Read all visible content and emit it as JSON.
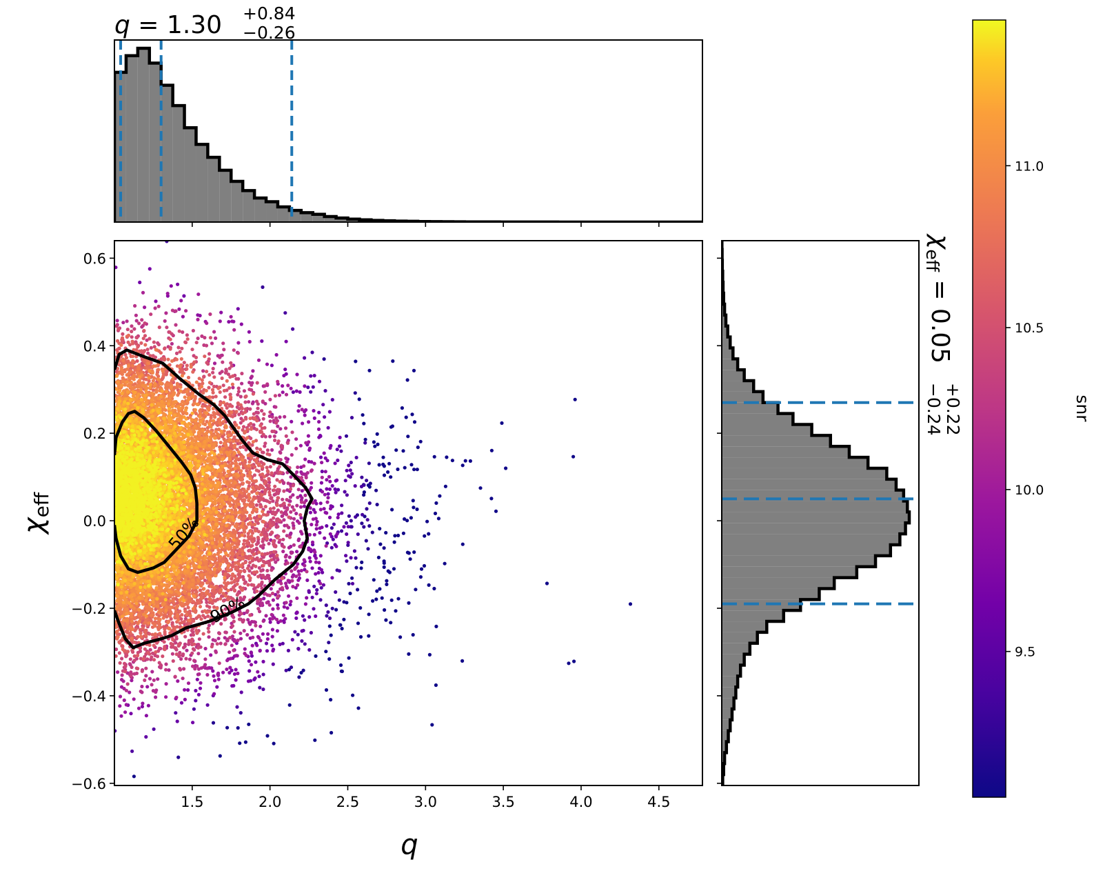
{
  "chart_data": {
    "type": "scatter",
    "figure": "joint posterior corner plot",
    "colors": {
      "histogram_fill": "#808080",
      "histogram_edge": "#000000",
      "quantile_line": "#1f77b4",
      "contour": "#000000",
      "colormap": "plasma"
    },
    "main": {
      "type": "scatter",
      "x_label": "q",
      "y_label": "χ",
      "y_label_sub": "eff",
      "xlim": [
        1.0,
        4.78
      ],
      "ylim": [
        -0.605,
        0.64
      ],
      "x_ticks": [
        "1.5",
        "2.0",
        "2.5",
        "3.0",
        "3.5",
        "4.0",
        "4.5"
      ],
      "y_ticks": [
        "0.6",
        "0.4",
        "0.2",
        "0.0",
        "−0.2",
        "−0.4",
        "−0.6"
      ],
      "color_by": "snr",
      "approx_points": 14000,
      "contours": [
        {
          "label": "50%",
          "points": [
            [
              1.0,
              0.15
            ],
            [
              1.01,
              0.19
            ],
            [
              1.05,
              0.225
            ],
            [
              1.09,
              0.245
            ],
            [
              1.13,
              0.25
            ],
            [
              1.19,
              0.235
            ],
            [
              1.27,
              0.205
            ],
            [
              1.35,
              0.17
            ],
            [
              1.43,
              0.135
            ],
            [
              1.49,
              0.105
            ],
            [
              1.52,
              0.075
            ],
            [
              1.53,
              0.04
            ],
            [
              1.53,
              0.0
            ],
            [
              1.48,
              -0.035
            ],
            [
              1.4,
              -0.065
            ],
            [
              1.32,
              -0.095
            ],
            [
              1.25,
              -0.108
            ],
            [
              1.15,
              -0.118
            ],
            [
              1.09,
              -0.11
            ],
            [
              1.04,
              -0.08
            ],
            [
              1.01,
              -0.04
            ],
            [
              1.0,
              -0.01
            ]
          ]
        },
        {
          "label": "90%",
          "points": [
            [
              1.0,
              0.345
            ],
            [
              1.03,
              0.38
            ],
            [
              1.08,
              0.39
            ],
            [
              1.19,
              0.375
            ],
            [
              1.31,
              0.36
            ],
            [
              1.42,
              0.325
            ],
            [
              1.54,
              0.29
            ],
            [
              1.64,
              0.265
            ],
            [
              1.71,
              0.24
            ],
            [
              1.77,
              0.21
            ],
            [
              1.82,
              0.185
            ],
            [
              1.89,
              0.155
            ],
            [
              1.98,
              0.14
            ],
            [
              2.08,
              0.13
            ],
            [
              2.15,
              0.105
            ],
            [
              2.19,
              0.09
            ],
            [
              2.23,
              0.075
            ],
            [
              2.27,
              0.05
            ],
            [
              2.24,
              0.03
            ],
            [
              2.22,
              0.0
            ],
            [
              2.24,
              -0.04
            ],
            [
              2.21,
              -0.07
            ],
            [
              2.15,
              -0.1
            ],
            [
              2.03,
              -0.135
            ],
            [
              1.93,
              -0.17
            ],
            [
              1.86,
              -0.19
            ],
            [
              1.75,
              -0.21
            ],
            [
              1.61,
              -0.23
            ],
            [
              1.46,
              -0.245
            ],
            [
              1.37,
              -0.262
            ],
            [
              1.3,
              -0.27
            ],
            [
              1.19,
              -0.28
            ],
            [
              1.12,
              -0.29
            ],
            [
              1.07,
              -0.27
            ],
            [
              1.03,
              -0.235
            ],
            [
              1.0,
              -0.205
            ]
          ]
        }
      ],
      "contour_labels": [
        {
          "text": "50%",
          "x": 1.45,
          "y": -0.03,
          "angle": -50
        },
        {
          "text": "90%",
          "x": 1.73,
          "y": -0.205,
          "angle": -28
        }
      ]
    },
    "top_histogram": {
      "type": "histogram",
      "variable": "q",
      "title_value": "1.30",
      "title_plus": "+0.84",
      "title_minus": "−0.26",
      "quantiles": [
        1.04,
        1.3,
        2.14
      ],
      "bin_edges": [
        1.0,
        1.075,
        1.15,
        1.225,
        1.3,
        1.375,
        1.45,
        1.525,
        1.6,
        1.675,
        1.75,
        1.825,
        1.9,
        1.975,
        2.05,
        2.125,
        2.2,
        2.275,
        2.35,
        2.425,
        2.5,
        2.575,
        2.65,
        2.725,
        2.8,
        2.875,
        2.95,
        3.025,
        3.1,
        3.175,
        3.25,
        3.325,
        3.4,
        3.475,
        3.55,
        3.625,
        3.7,
        3.775,
        3.85,
        3.925,
        4.0,
        4.075,
        4.15,
        4.225,
        4.3,
        4.375,
        4.45,
        4.525,
        4.6,
        4.675,
        4.75,
        4.78
      ],
      "densities": [
        0.81,
        0.9,
        0.94,
        0.86,
        0.74,
        0.63,
        0.51,
        0.42,
        0.35,
        0.28,
        0.22,
        0.17,
        0.13,
        0.11,
        0.082,
        0.063,
        0.051,
        0.042,
        0.03,
        0.022,
        0.016,
        0.012,
        0.009,
        0.007,
        0.005,
        0.004,
        0.003,
        0.0025,
        0.002,
        0.0015,
        0.001,
        0.001,
        0.0008,
        0.0006,
        0.0005,
        0.0004,
        0.0003,
        0.0003,
        0.0002,
        0.0002,
        0.0001,
        0.0001,
        0.0001,
        0.0001,
        0.0001,
        0.0001,
        0.0001,
        0.0001,
        0.0001,
        0.0001,
        0.0001
      ],
      "x_ticks": [
        1.5,
        2.0,
        2.5,
        3.0,
        3.5,
        4.0,
        4.5
      ]
    },
    "right_histogram": {
      "type": "histogram",
      "variable": "χ_eff",
      "orientation": "horizontal",
      "title_prefix": "χ",
      "title_sub": "eff",
      "title_value": "0.05",
      "title_plus": "+0.22",
      "title_minus": "−0.24",
      "quantiles": [
        -0.19,
        0.05,
        0.27
      ],
      "bin_edges": [
        -0.605,
        -0.58,
        -0.555,
        -0.53,
        -0.505,
        -0.48,
        -0.455,
        -0.43,
        -0.405,
        -0.38,
        -0.355,
        -0.33,
        -0.305,
        -0.28,
        -0.255,
        -0.23,
        -0.205,
        -0.18,
        -0.155,
        -0.13,
        -0.105,
        -0.08,
        -0.055,
        -0.03,
        -0.005,
        0.02,
        0.045,
        0.07,
        0.095,
        0.12,
        0.145,
        0.17,
        0.195,
        0.22,
        0.245,
        0.27,
        0.295,
        0.32,
        0.345,
        0.37,
        0.395,
        0.42,
        0.445,
        0.47,
        0.495,
        0.52,
        0.545,
        0.57,
        0.595,
        0.62,
        0.64
      ],
      "densities": [
        0.005,
        0.01,
        0.015,
        0.025,
        0.035,
        0.045,
        0.055,
        0.065,
        0.075,
        0.085,
        0.1,
        0.12,
        0.15,
        0.19,
        0.24,
        0.33,
        0.42,
        0.52,
        0.6,
        0.72,
        0.82,
        0.9,
        0.95,
        0.98,
        1.0,
        0.99,
        0.97,
        0.93,
        0.88,
        0.78,
        0.68,
        0.58,
        0.48,
        0.38,
        0.3,
        0.22,
        0.17,
        0.12,
        0.085,
        0.06,
        0.045,
        0.032,
        0.022,
        0.015,
        0.01,
        0.007,
        0.005,
        0.003,
        0.002,
        0.001
      ],
      "y_ticks": [
        0.6,
        0.4,
        0.2,
        0.0,
        -0.2,
        -0.4,
        -0.6
      ]
    },
    "colorbar": {
      "label": "snr",
      "range": [
        9.05,
        11.45
      ],
      "ticks": [
        "9.5",
        "10.0",
        "10.5",
        "11.0"
      ],
      "tick_values": [
        9.5,
        10.0,
        10.5,
        11.0
      ],
      "colormap": "plasma"
    }
  }
}
